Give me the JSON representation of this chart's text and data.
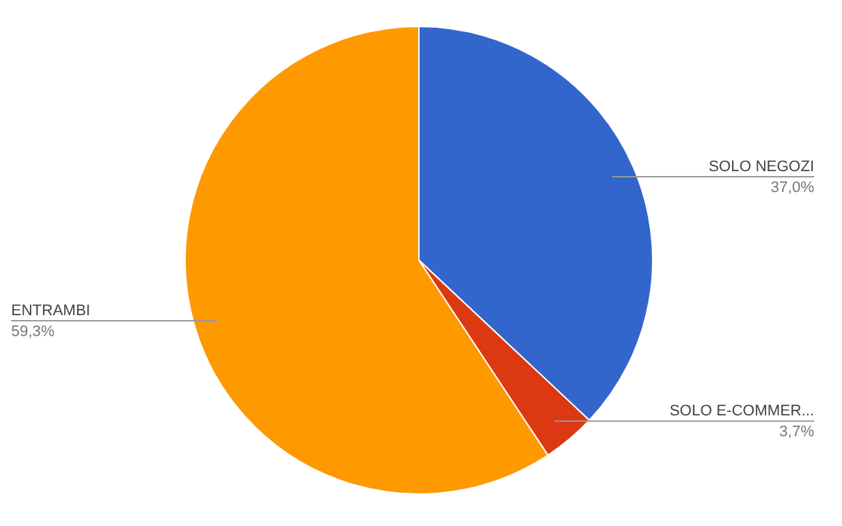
{
  "chart_data": {
    "type": "pie",
    "categories": [
      "SOLO NEGOZI",
      "SOLO E-COMMER...",
      "ENTRAMBI"
    ],
    "values": [
      37.0,
      3.7,
      59.3
    ],
    "colors": [
      "#3366cc",
      "#dc3912",
      "#ff9900"
    ],
    "value_labels": [
      "37,0%",
      "3,7%",
      "59,3%"
    ]
  }
}
